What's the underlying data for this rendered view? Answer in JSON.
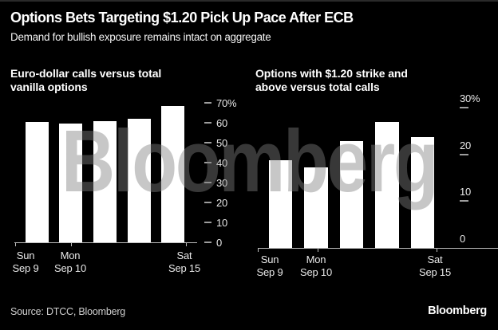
{
  "header": {
    "title": "Options Bets Targeting $1.20 Pick Up Pace After ECB",
    "subtitle": "Demand for bullish exposure remains intact on aggregate"
  },
  "watermark_text": "Bloomberg",
  "footer": {
    "source": "Source: DTCC, Bloomberg",
    "brand": "Bloomberg"
  },
  "colors": {
    "background": "#000000",
    "bar": "#ffffff",
    "title_text": "#ffffff",
    "tick_label": "#e8e8e8",
    "axis_line": "#bdbdbd",
    "watermark": "#3e3e3e"
  },
  "chart_data": [
    {
      "type": "bar",
      "title": "Euro-dollar calls versus total vanilla options",
      "title_lines": [
        "Euro-dollar calls versus total",
        "vanilla options"
      ],
      "values": [
        60.5,
        59.5,
        61,
        62,
        68.5
      ],
      "unit": "%",
      "ylim": [
        0,
        70
      ],
      "y_tick_labels": [
        "70%",
        "60",
        "50",
        "40",
        "30",
        "20",
        "10",
        "0"
      ],
      "y_tick_values": [
        70,
        60,
        50,
        40,
        30,
        20,
        10,
        0
      ],
      "x_tick_labels": [
        [
          "Sun",
          "Sep 9"
        ],
        [
          "Mon",
          "Sep 10"
        ],
        [
          "Sat",
          "Sep 15"
        ]
      ],
      "legend": "none",
      "grid": false,
      "axis_side": "right"
    },
    {
      "type": "bar",
      "title": "Options with $1.20 strike and above versus total calls",
      "title_lines": [
        "Options with $1.20 strike and",
        "above versus total calls"
      ],
      "values": [
        18.7,
        17.3,
        22.8,
        27,
        23.7
      ],
      "unit": "%",
      "ylim": [
        0,
        30
      ],
      "y_tick_labels": [
        "30%",
        "20",
        "10",
        "0"
      ],
      "y_tick_values": [
        30,
        20,
        10,
        0
      ],
      "x_tick_labels": [
        [
          "Sun",
          "Sep 9"
        ],
        [
          "Mon",
          "Sep 10"
        ],
        [
          "Sat",
          "Sep 15"
        ]
      ],
      "legend": "none",
      "grid": false,
      "axis_side": "right"
    }
  ]
}
